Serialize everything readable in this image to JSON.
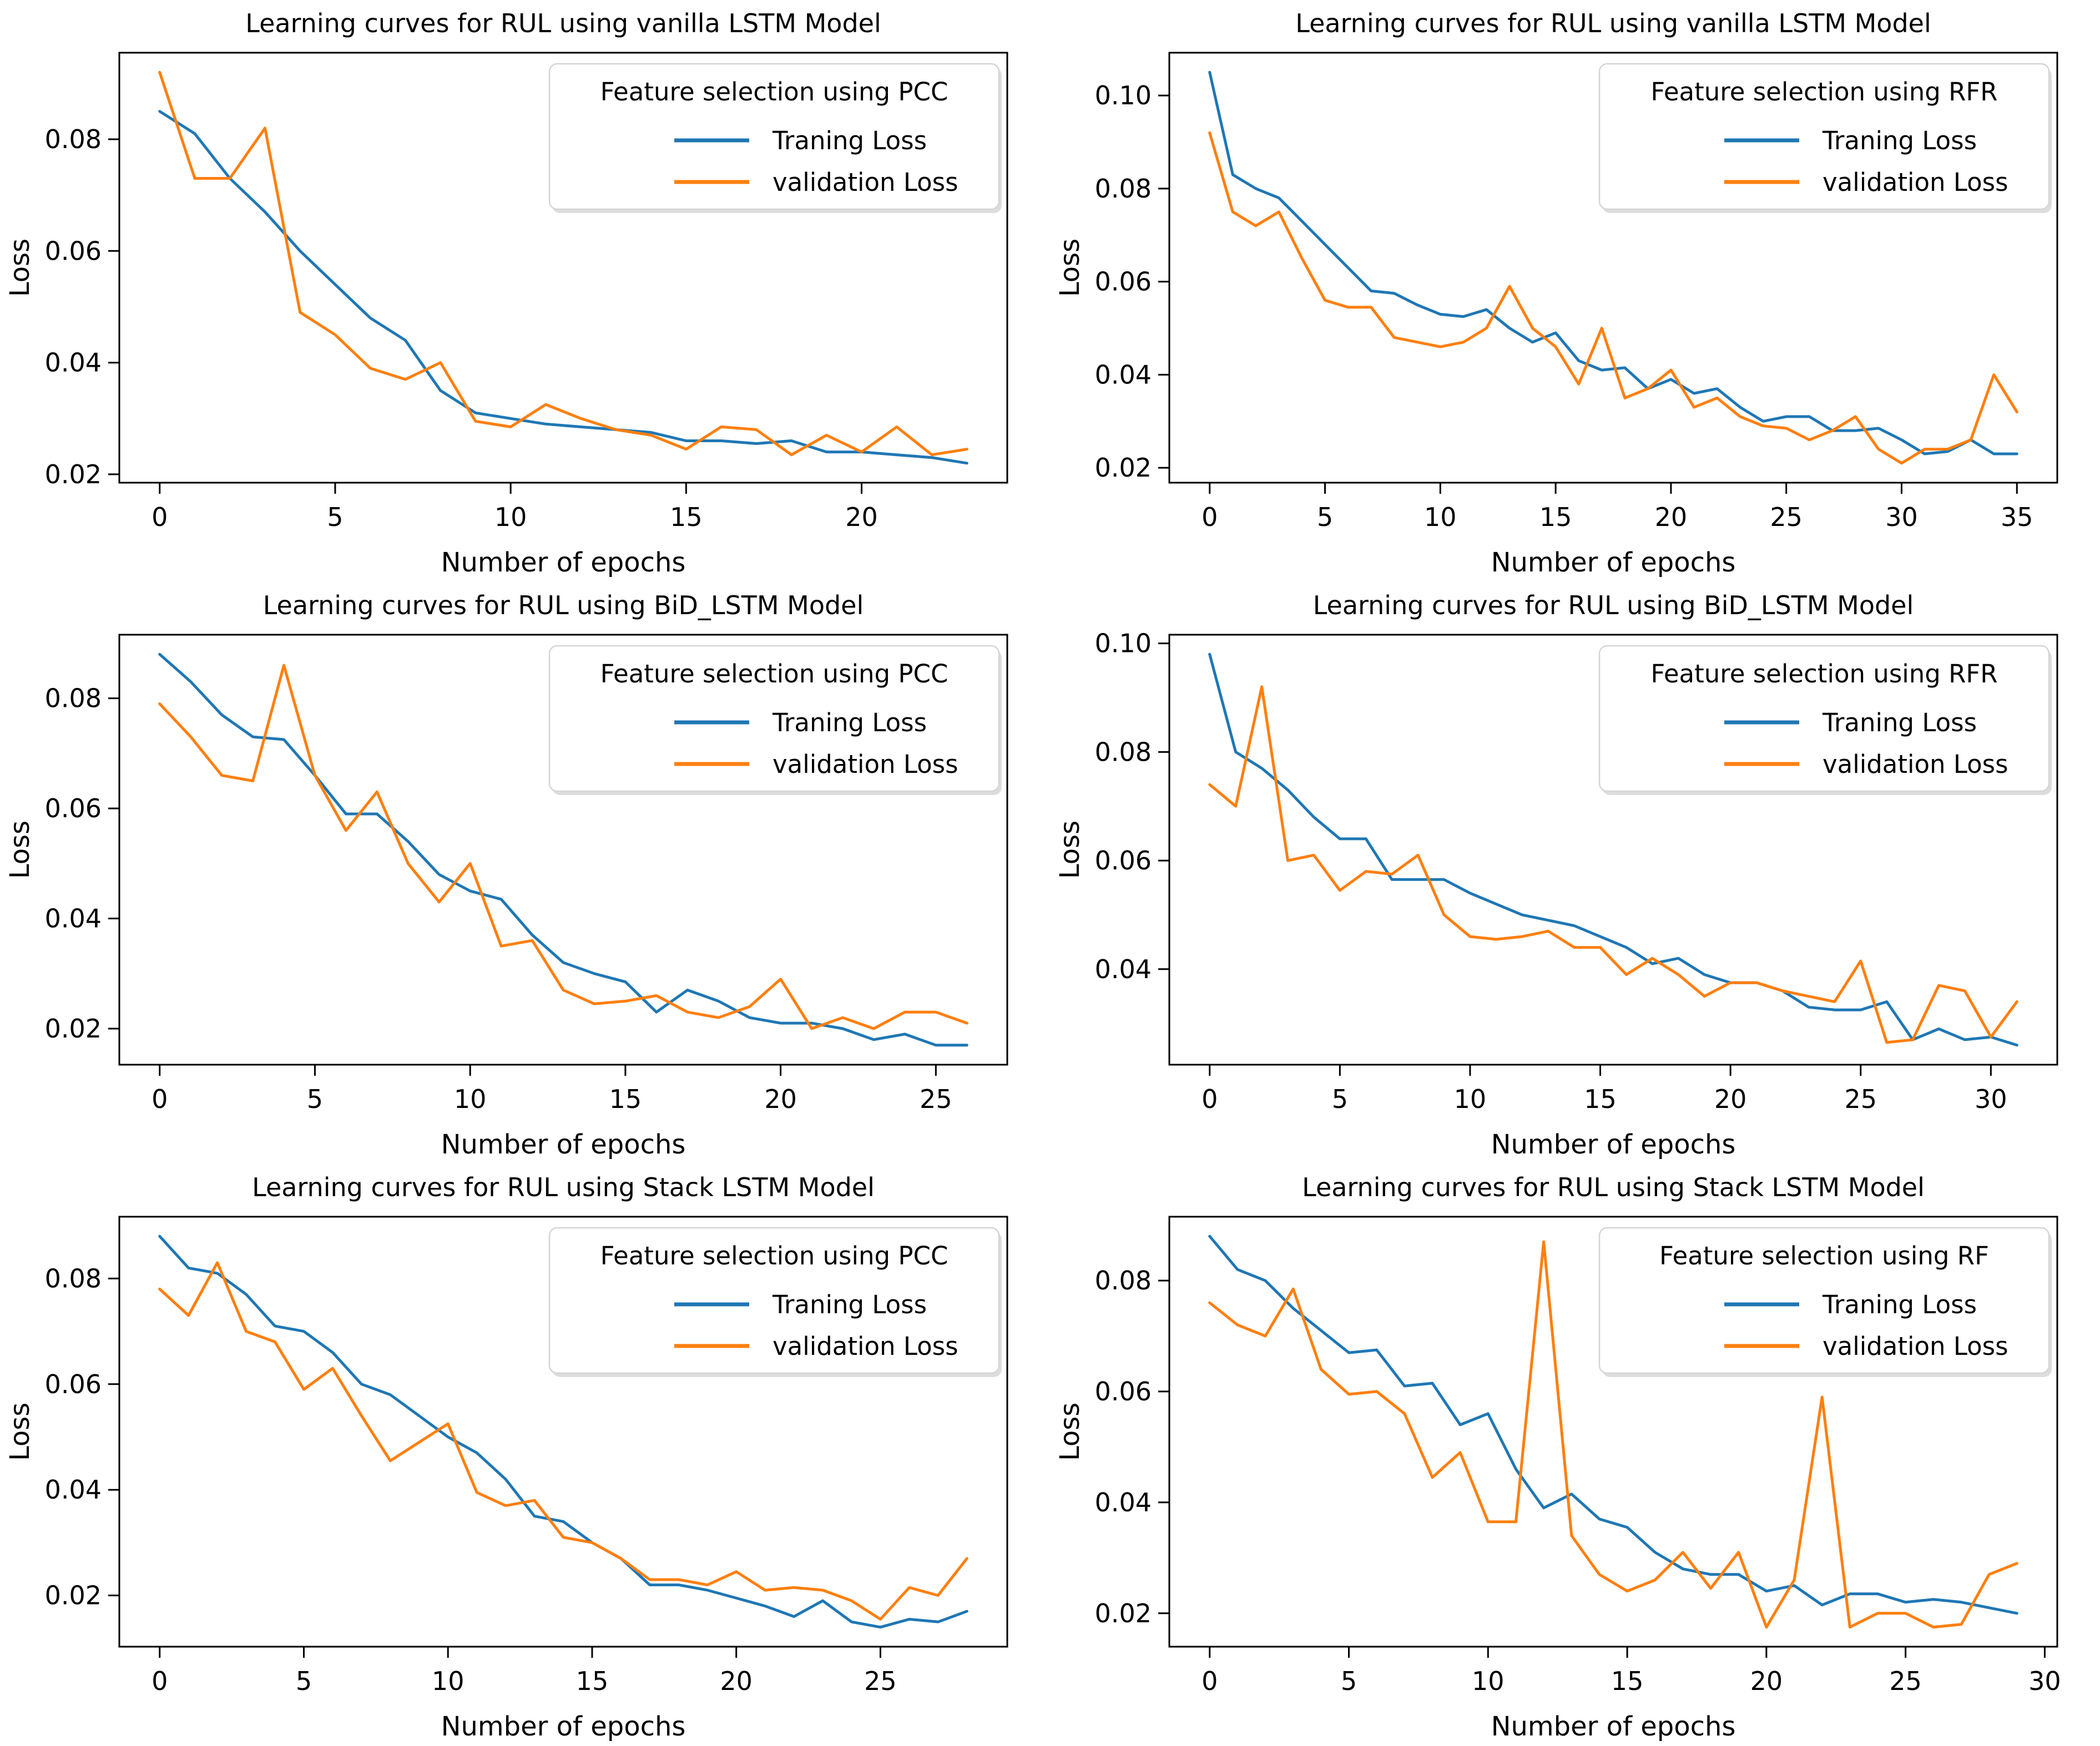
{
  "page": {
    "background": "#ffffff"
  },
  "colors": {
    "training": "#1f77b4",
    "validation": "#ff7f0e",
    "axis": "#000000",
    "legend_border": "#d5d5d5",
    "legend_bg": "#ffffff"
  },
  "chart_data": [
    {
      "id": "vanilla-pcc",
      "type": "line",
      "title": "Learning curves for RUL using vanilla LSTM Model",
      "legend_title": "Feature selection using PCC",
      "xlabel": "Number of epochs",
      "ylabel": "Loss",
      "x_ticks": [
        0,
        5,
        10,
        15,
        20
      ],
      "y_ticks": [
        0.02,
        0.04,
        0.06,
        0.08
      ],
      "legend_position": "top-right",
      "grid": false,
      "series": [
        {
          "name": "Traning Loss",
          "color_key": "training",
          "values": [
            0.085,
            0.081,
            0.073,
            0.067,
            0.06,
            0.054,
            0.048,
            0.044,
            0.035,
            0.031,
            0.03,
            0.029,
            0.0285,
            0.028,
            0.0275,
            0.026,
            0.026,
            0.0255,
            0.026,
            0.024,
            0.024,
            0.0235,
            0.023,
            0.022
          ]
        },
        {
          "name": "validation Loss",
          "color_key": "validation",
          "values": [
            0.092,
            0.073,
            0.073,
            0.082,
            0.049,
            0.045,
            0.039,
            0.037,
            0.04,
            0.0295,
            0.0285,
            0.0325,
            0.03,
            0.028,
            0.027,
            0.0245,
            0.0285,
            0.028,
            0.0235,
            0.027,
            0.024,
            0.0285,
            0.0235,
            0.0245
          ]
        }
      ]
    },
    {
      "id": "vanilla-rfr",
      "type": "line",
      "title": "Learning curves for RUL using vanilla LSTM Model",
      "legend_title": "Feature selection using RFR",
      "xlabel": "Number of epochs",
      "ylabel": "Loss",
      "x_ticks": [
        0,
        5,
        10,
        15,
        20,
        25,
        30,
        35
      ],
      "y_ticks": [
        0.02,
        0.04,
        0.06,
        0.08,
        0.1
      ],
      "legend_position": "top-right",
      "grid": false,
      "series": [
        {
          "name": "Traning Loss",
          "color_key": "training",
          "values": [
            0.105,
            0.083,
            0.08,
            0.078,
            0.073,
            0.068,
            0.063,
            0.058,
            0.0575,
            0.055,
            0.053,
            0.0525,
            0.054,
            0.05,
            0.047,
            0.049,
            0.043,
            0.041,
            0.0415,
            0.037,
            0.039,
            0.036,
            0.037,
            0.033,
            0.03,
            0.031,
            0.031,
            0.028,
            0.028,
            0.0285,
            0.026,
            0.023,
            0.0235,
            0.026,
            0.023,
            0.023
          ]
        },
        {
          "name": "validation Loss",
          "color_key": "validation",
          "values": [
            0.092,
            0.075,
            0.072,
            0.075,
            0.065,
            0.056,
            0.0545,
            0.0545,
            0.048,
            0.047,
            0.046,
            0.047,
            0.05,
            0.059,
            0.05,
            0.046,
            0.038,
            0.05,
            0.035,
            0.037,
            0.041,
            0.033,
            0.035,
            0.031,
            0.029,
            0.0285,
            0.026,
            0.028,
            0.031,
            0.024,
            0.021,
            0.024,
            0.024,
            0.026,
            0.04,
            0.032
          ]
        }
      ]
    },
    {
      "id": "bid-pcc",
      "type": "line",
      "title": "Learning curves for RUL using BiD_LSTM Model",
      "legend_title": "Feature selection using PCC",
      "xlabel": "Number of epochs",
      "ylabel": "Loss",
      "x_ticks": [
        0,
        5,
        10,
        15,
        20,
        25
      ],
      "y_ticks": [
        0.02,
        0.04,
        0.06,
        0.08
      ],
      "legend_position": "top-right",
      "grid": false,
      "series": [
        {
          "name": "Traning Loss",
          "color_key": "training",
          "values": [
            0.088,
            0.083,
            0.077,
            0.073,
            0.0725,
            0.066,
            0.059,
            0.059,
            0.054,
            0.048,
            0.045,
            0.0435,
            0.037,
            0.032,
            0.03,
            0.0285,
            0.023,
            0.027,
            0.025,
            0.022,
            0.021,
            0.021,
            0.02,
            0.018,
            0.019,
            0.017,
            0.017
          ]
        },
        {
          "name": "validation Loss",
          "color_key": "validation",
          "values": [
            0.079,
            0.073,
            0.066,
            0.065,
            0.086,
            0.066,
            0.056,
            0.063,
            0.05,
            0.043,
            0.05,
            0.035,
            0.036,
            0.027,
            0.0245,
            0.025,
            0.026,
            0.023,
            0.022,
            0.024,
            0.029,
            0.02,
            0.022,
            0.02,
            0.023,
            0.023,
            0.021
          ]
        }
      ]
    },
    {
      "id": "bid-rfr",
      "type": "line",
      "title": "Learning curves for RUL using BiD_LSTM Model",
      "legend_title": "Feature selection using RFR",
      "xlabel": "Number of epochs",
      "ylabel": "Loss",
      "x_ticks": [
        0,
        5,
        10,
        15,
        20,
        25,
        30
      ],
      "y_ticks": [
        0.04,
        0.06,
        0.08,
        0.1
      ],
      "legend_position": "top-right",
      "grid": false,
      "series": [
        {
          "name": "Traning Loss",
          "color_key": "training",
          "values": [
            0.098,
            0.08,
            0.077,
            0.073,
            0.068,
            0.064,
            0.064,
            0.0565,
            0.0565,
            0.0565,
            0.054,
            0.052,
            0.05,
            0.049,
            0.048,
            0.046,
            0.044,
            0.041,
            0.042,
            0.039,
            0.0375,
            0.0375,
            0.036,
            0.033,
            0.0325,
            0.0325,
            0.034,
            0.027,
            0.029,
            0.027,
            0.0275,
            0.026
          ]
        },
        {
          "name": "validation Loss",
          "color_key": "validation",
          "values": [
            0.074,
            0.07,
            0.092,
            0.06,
            0.061,
            0.0545,
            0.058,
            0.0575,
            0.061,
            0.05,
            0.046,
            0.0455,
            0.046,
            0.047,
            0.044,
            0.044,
            0.039,
            0.042,
            0.039,
            0.035,
            0.0375,
            0.0375,
            0.036,
            0.035,
            0.034,
            0.0415,
            0.0265,
            0.027,
            0.037,
            0.036,
            0.0275,
            0.034
          ]
        }
      ]
    },
    {
      "id": "stack-pcc",
      "type": "line",
      "title": "Learning curves for RUL using Stack LSTM Model",
      "legend_title": "Feature selection using PCC",
      "xlabel": "Number of epochs",
      "ylabel": "Loss",
      "x_ticks": [
        0,
        5,
        10,
        15,
        20,
        25
      ],
      "y_ticks": [
        0.02,
        0.04,
        0.06,
        0.08
      ],
      "legend_position": "top-right",
      "grid": false,
      "series": [
        {
          "name": "Traning Loss",
          "color_key": "training",
          "values": [
            0.088,
            0.082,
            0.081,
            0.077,
            0.071,
            0.07,
            0.066,
            0.06,
            0.058,
            0.054,
            0.05,
            0.047,
            0.042,
            0.035,
            0.034,
            0.03,
            0.027,
            0.022,
            0.022,
            0.021,
            0.0195,
            0.018,
            0.016,
            0.019,
            0.015,
            0.014,
            0.0155,
            0.015,
            0.017
          ]
        },
        {
          "name": "validation Loss",
          "color_key": "validation",
          "values": [
            0.078,
            0.073,
            0.083,
            0.07,
            0.068,
            0.059,
            0.063,
            0.054,
            0.0455,
            0.049,
            0.0525,
            0.0395,
            0.037,
            0.038,
            0.031,
            0.03,
            0.027,
            0.023,
            0.023,
            0.022,
            0.0245,
            0.021,
            0.0215,
            0.021,
            0.019,
            0.0155,
            0.0215,
            0.02,
            0.027
          ]
        }
      ]
    },
    {
      "id": "stack-rf",
      "type": "line",
      "title": "Learning curves for RUL using Stack LSTM Model",
      "legend_title": "Feature selection using RF",
      "xlabel": "Number of epochs",
      "ylabel": "Loss",
      "x_ticks": [
        0,
        5,
        10,
        15,
        20,
        25,
        30
      ],
      "y_ticks": [
        0.02,
        0.04,
        0.06,
        0.08
      ],
      "legend_position": "top-right",
      "grid": false,
      "series": [
        {
          "name": "Traning Loss",
          "color_key": "training",
          "values": [
            0.088,
            0.082,
            0.08,
            0.075,
            0.071,
            0.067,
            0.0675,
            0.061,
            0.0615,
            0.054,
            0.056,
            0.046,
            0.039,
            0.0415,
            0.037,
            0.0355,
            0.031,
            0.028,
            0.027,
            0.027,
            0.024,
            0.025,
            0.0215,
            0.0235,
            0.0235,
            0.022,
            0.0225,
            0.022,
            0.021,
            0.02
          ]
        },
        {
          "name": "validation Loss",
          "color_key": "validation",
          "values": [
            0.076,
            0.072,
            0.07,
            0.0785,
            0.064,
            0.0595,
            0.06,
            0.056,
            0.0445,
            0.049,
            0.0365,
            0.0365,
            0.087,
            0.034,
            0.027,
            0.024,
            0.026,
            0.031,
            0.0245,
            0.031,
            0.0175,
            0.026,
            0.059,
            0.0175,
            0.02,
            0.02,
            0.0175,
            0.018,
            0.027,
            0.029
          ]
        }
      ]
    }
  ]
}
